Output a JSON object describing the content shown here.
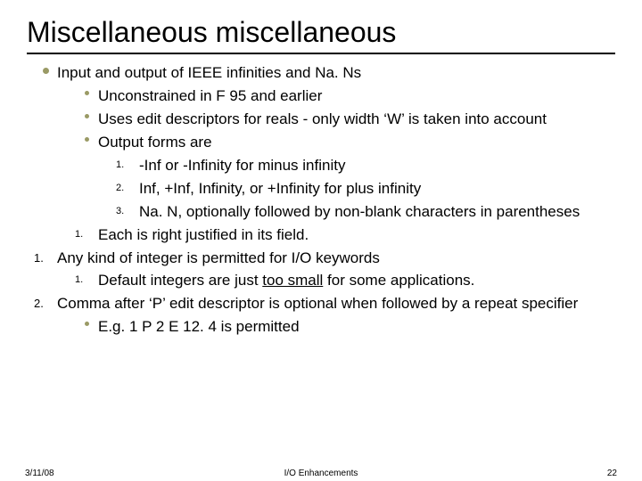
{
  "title": "Miscellaneous miscellaneous",
  "items": {
    "i1": "Input and output of IEEE infinities and Na. Ns",
    "i1a": "Unconstrained in F 95 and earlier",
    "i1b": "Uses edit descriptors for reals - only width ‘W’ is taken into account",
    "i1c": "Output forms are",
    "i1c1": "-Inf or -Infinity for minus infinity",
    "i1c2": "Inf, +Inf, Infinity, or +Infinity for plus infinity",
    "i1c3": "Na. N, optionally followed by non-blank characters in parentheses",
    "i1d": "Each is right justified in its field.",
    "i2": "Any kind of integer is permitted for I/O keywords",
    "i2a_pre": "Default integers are just ",
    "i2a_u": "too small",
    "i2a_post": " for some applications.",
    "i3": "Comma after ‘P’ edit descriptor is optional when followed by a repeat specifier",
    "i3a": "E.g. 1 P 2 E 12. 4 is permitted"
  },
  "nums": {
    "n1": "1.",
    "n2": "2.",
    "n3": "3."
  },
  "footer": {
    "date": "3/11/08",
    "mid": "I/O Enhancements",
    "page": "22"
  },
  "colors": {
    "bullet": "#9a9a65",
    "rule": "#000000",
    "text": "#000000",
    "bg": "#ffffff"
  },
  "fonts": {
    "title_size": 32,
    "body_size": 17,
    "footer_size": 10
  }
}
